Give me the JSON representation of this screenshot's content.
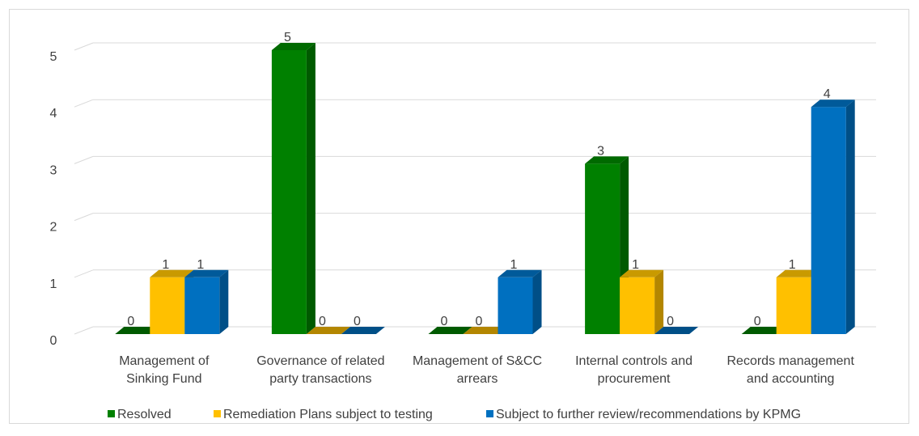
{
  "chart_data": {
    "type": "bar",
    "categories": [
      [
        "Management of",
        "Sinking Fund"
      ],
      [
        "Governance of related",
        "party transactions"
      ],
      [
        "Management of S&CC",
        "arrears"
      ],
      [
        "Internal controls and",
        "procurement"
      ],
      [
        "Records management",
        "and accounting"
      ]
    ],
    "series": [
      {
        "name": "Resolved",
        "values": [
          0,
          5,
          0,
          3,
          0
        ],
        "color": "#008000",
        "side_color": "#005a00",
        "top_color": "#006a00"
      },
      {
        "name": "Remediation Plans subject to testing",
        "values": [
          1,
          0,
          0,
          1,
          1
        ],
        "color": "#ffc000",
        "side_color": "#b38600",
        "top_color": "#c99a00"
      },
      {
        "name": "Subject to further review/recommendations by KPMG",
        "values": [
          1,
          0,
          1,
          0,
          4
        ],
        "color": "#0070c0",
        "side_color": "#004f87",
        "top_color": "#005a9a"
      }
    ],
    "y_ticks": [
      "0",
      "1",
      "2",
      "3",
      "4",
      "5"
    ],
    "ylim": [
      0,
      5
    ],
    "grid": true,
    "legend_position": "bottom",
    "data_labels": true,
    "style": "3d-clustered-column"
  }
}
